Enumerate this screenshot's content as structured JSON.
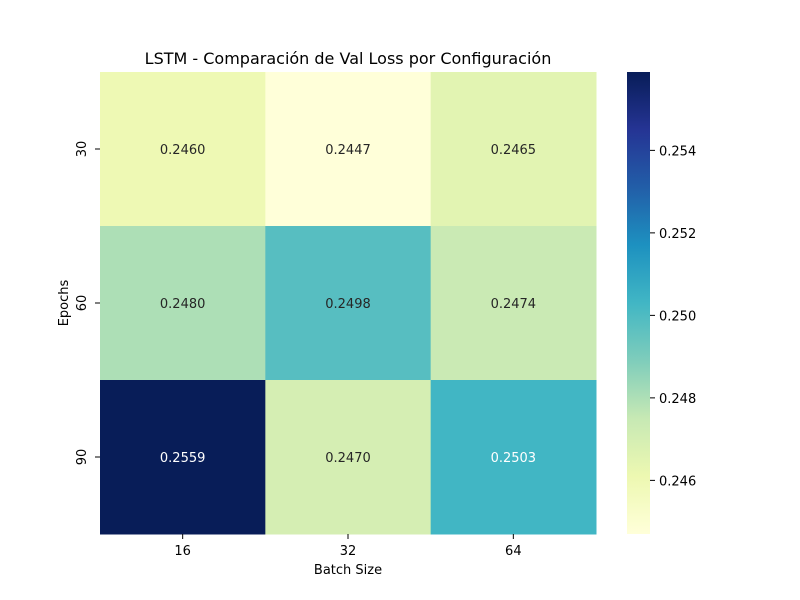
{
  "chart_data": {
    "type": "heatmap",
    "title": "LSTM - Comparación de Val Loss por Configuración",
    "xlabel": "Batch Size",
    "ylabel": "Epochs",
    "x_categories": [
      "16",
      "32",
      "64"
    ],
    "y_categories": [
      "30",
      "60",
      "90"
    ],
    "values": [
      [
        0.246,
        0.2447,
        0.2465
      ],
      [
        0.248,
        0.2498,
        0.2474
      ],
      [
        0.2559,
        0.247,
        0.2503
      ]
    ],
    "value_labels": [
      [
        "0.2460",
        "0.2447",
        "0.2465"
      ],
      [
        "0.2480",
        "0.2498",
        "0.2474"
      ],
      [
        "0.2559",
        "0.2470",
        "0.2503"
      ]
    ],
    "colormap": "YlGnBu",
    "colorbar": {
      "range": [
        0.2447,
        0.2559
      ],
      "ticks": [
        0.246,
        0.248,
        0.25,
        0.252,
        0.254
      ],
      "tick_labels": [
        "0.246",
        "0.248",
        "0.250",
        "0.252",
        "0.254"
      ]
    }
  }
}
